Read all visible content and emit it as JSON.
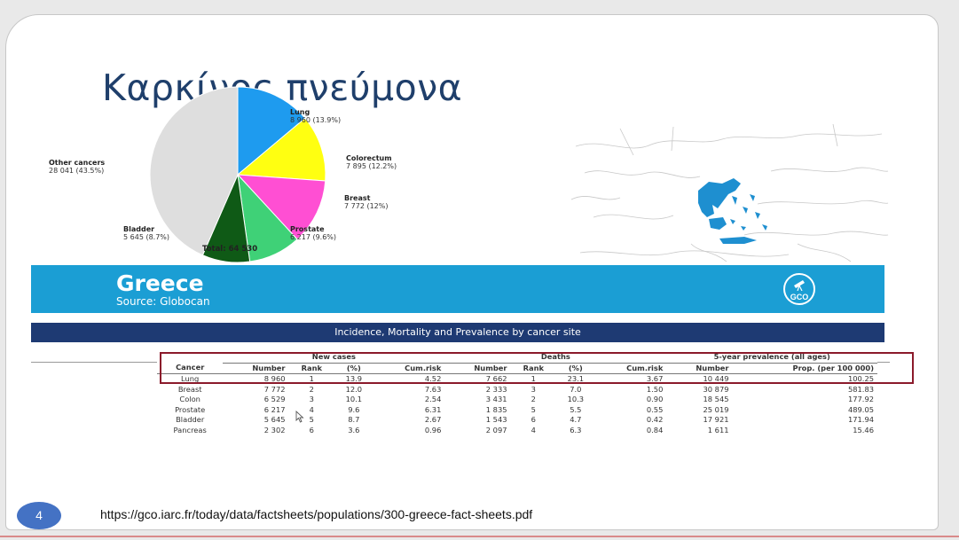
{
  "slide": {
    "title": "Καρκίνος πνεύμονα",
    "page_number": "4",
    "url": "https://gco.iarc.fr/today/data/factsheets/populations/300-greece-fact-sheets.pdf"
  },
  "chart_data": {
    "type": "pie",
    "total_label": "Total: 64 530",
    "slices": [
      {
        "name": "Lung",
        "value_label": "8 960 (13.9%)",
        "value": 8960,
        "percent": 13.9,
        "color": "#1e9bef"
      },
      {
        "name": "Colorectum",
        "value_label": "7 895 (12.2%)",
        "value": 7895,
        "percent": 12.2,
        "color": "#ffff11"
      },
      {
        "name": "Breast",
        "value_label": "7 772 (12%)",
        "value": 7772,
        "percent": 12.0,
        "color": "#ff4fd3"
      },
      {
        "name": "Prostate",
        "value_label": "6 217 (9.6%)",
        "value": 6217,
        "percent": 9.6,
        "color": "#3fd177"
      },
      {
        "name": "Bladder",
        "value_label": "5 645 (8.7%)",
        "value": 5645,
        "percent": 8.7,
        "color": "#0f5a16"
      },
      {
        "name": "Other cancers",
        "value_label": "28 041 (43.5%)",
        "value": 28041,
        "percent": 43.5,
        "color": "#dedede"
      }
    ]
  },
  "banner": {
    "country": "Greece",
    "source": "Source: Globocan",
    "logo_text": "GCO",
    "color": "#1b9ed4"
  },
  "table": {
    "title": "Incidence, Mortality and Prevalence by cancer site",
    "groups": [
      "New cases",
      "Deaths",
      "5-year prevalence (all ages)"
    ],
    "columns": [
      "Cancer",
      "Number",
      "Rank",
      "(%)",
      "Cum.risk",
      "Number",
      "Rank",
      "(%)",
      "Cum.risk",
      "Number",
      "Prop. (per 100 000)"
    ],
    "rows": [
      [
        "Lung",
        "8 960",
        "1",
        "13.9",
        "4.52",
        "7 662",
        "1",
        "23.1",
        "3.67",
        "10 449",
        "100.25"
      ],
      [
        "Breast",
        "7 772",
        "2",
        "12.0",
        "7.63",
        "2 333",
        "3",
        "7.0",
        "1.50",
        "30 879",
        "581.83"
      ],
      [
        "Colon",
        "6 529",
        "3",
        "10.1",
        "2.54",
        "3 431",
        "2",
        "10.3",
        "0.90",
        "18 545",
        "177.92"
      ],
      [
        "Prostate",
        "6 217",
        "4",
        "9.6",
        "6.31",
        "1 835",
        "5",
        "5.5",
        "0.55",
        "25 019",
        "489.05"
      ],
      [
        "Bladder",
        "5 645",
        "5",
        "8.7",
        "2.67",
        "1 543",
        "6",
        "4.7",
        "0.42",
        "17 921",
        "171.94"
      ],
      [
        "Pancreas",
        "2 302",
        "6",
        "3.6",
        "0.96",
        "2 097",
        "4",
        "6.3",
        "0.84",
        "1 611",
        "15.46"
      ]
    ],
    "highlight_color": "#8b1a2b"
  }
}
